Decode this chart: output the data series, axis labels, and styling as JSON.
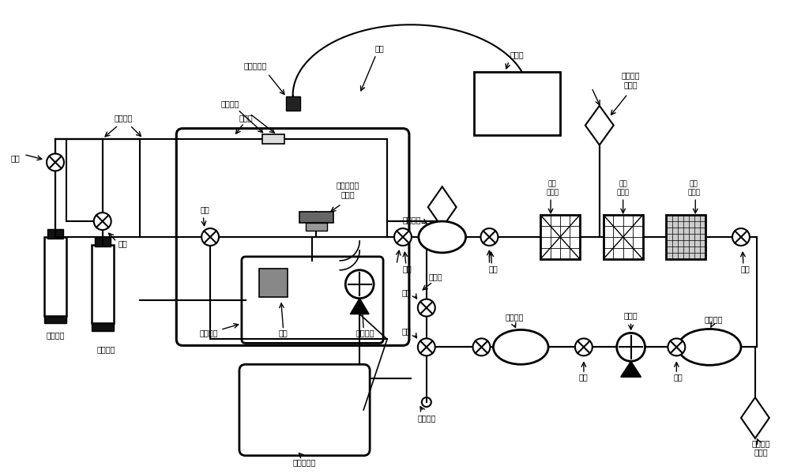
{
  "bg_color": "#ffffff",
  "lc": "#000000",
  "labels": {
    "valve1": "阀一",
    "gas_pipe": "气体管路",
    "glove_box": "手套箱",
    "quartz_glass": "石英玻璃",
    "laser_head": "激光输出头",
    "fiber": "光纤",
    "laser": "激光器",
    "radiation_detector1": "辐射剂量\n检测仪",
    "valve3": "阀三",
    "temp_pressure": "温度、压力\n传感器",
    "buffer_tank1": "缓存罐一",
    "initial_filter": "初效\n过滤器",
    "mid_filter": "中效\n过滤器",
    "high_filter": "高效\n过滤器",
    "sealed_container": "密封容器",
    "crucible": "坩埚",
    "aviation_plug": "航空插头",
    "signal_line": "信号线",
    "valve4": "阀四",
    "valve5": "阀王",
    "valve6": "阀六",
    "paperless_recorder": "无纸记录仪",
    "valve9": "阀九",
    "valve10": "阀十",
    "gas_outlet": "气体出口",
    "buffer_tank3": "缓存罐三",
    "vacuum_pump": "真空泵",
    "buffer_tank2": "缓存罐二",
    "valve8": "阀八",
    "valve7": "阀七",
    "radiation_detector2": "辐射剂量\n检测仪",
    "nitrogen1": "氮气瓶一",
    "nitrogen2": "氮气瓶二",
    "valve2": "阀二"
  }
}
